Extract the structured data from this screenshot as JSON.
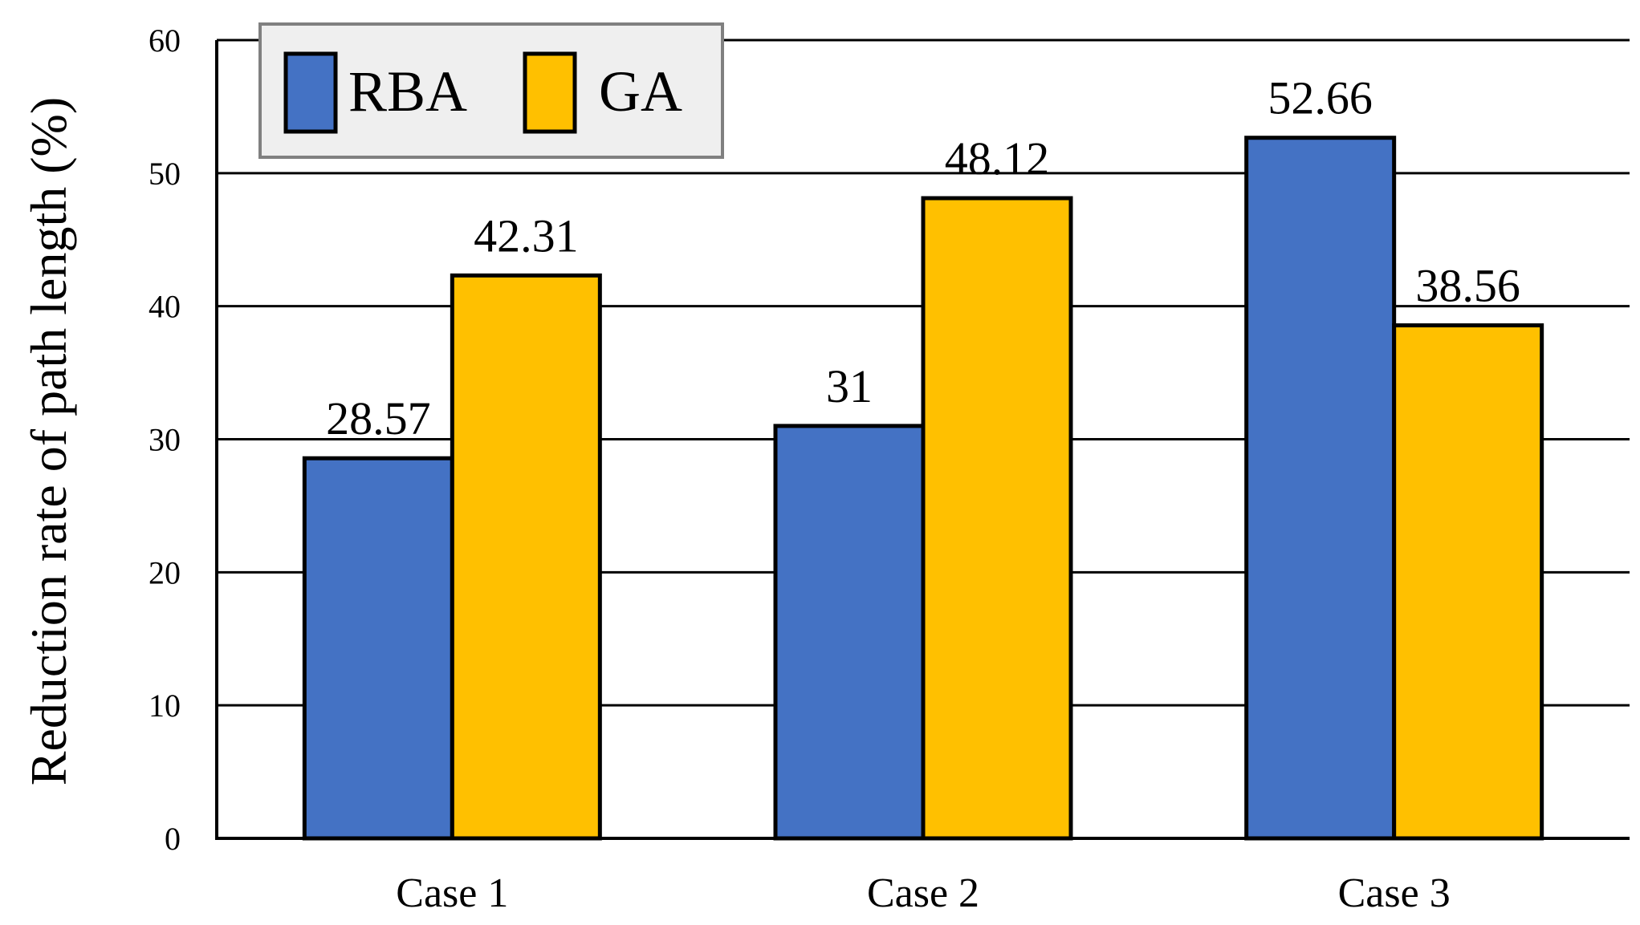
{
  "chart_data": {
    "type": "bar",
    "title": "",
    "xlabel": "",
    "ylabel": "Reduction rate of path length (%)",
    "categories": [
      "Case 1",
      "Case 2",
      "Case 3"
    ],
    "series": [
      {
        "name": "RBA",
        "color": "#4472C4",
        "values": [
          28.57,
          31,
          52.66
        ],
        "labels": [
          "28.57",
          "31",
          "52.66"
        ]
      },
      {
        "name": "GA",
        "color": "#FFC000",
        "values": [
          42.31,
          48.12,
          38.56
        ],
        "labels": [
          "42.31",
          "48.12",
          "38.56"
        ]
      }
    ],
    "ylim": [
      0,
      60
    ],
    "yticks": [
      "0",
      "10",
      "20",
      "30",
      "40",
      "50",
      "60"
    ],
    "grid": true,
    "legend_position": "top-left"
  }
}
